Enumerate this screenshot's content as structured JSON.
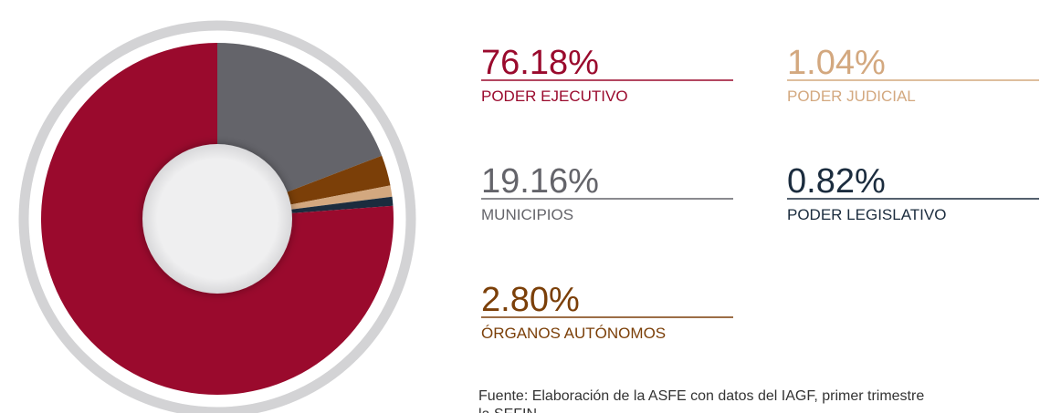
{
  "chart_data": {
    "type": "pie",
    "categories": [
      "MUNICIPIOS",
      "ÓRGANOS AUTÓNOMOS",
      "PODER JUDICIAL",
      "PODER LEGISLATIVO",
      "PODER EJECUTIVO"
    ],
    "values": [
      19.16,
      2.8,
      1.04,
      0.82,
      76.18
    ],
    "value_labels": [
      "19.16%",
      "2.80%",
      "1.04%",
      "0.82%",
      "76.18%"
    ],
    "colors": [
      "#64646a",
      "#7b3f08",
      "#d3a87f",
      "#1b2c3e",
      "#9a0a2d"
    ],
    "note": "Fuente: Elaboración de la ASFE con datos del IAGF, primer trimestre la SEFIN"
  }
}
